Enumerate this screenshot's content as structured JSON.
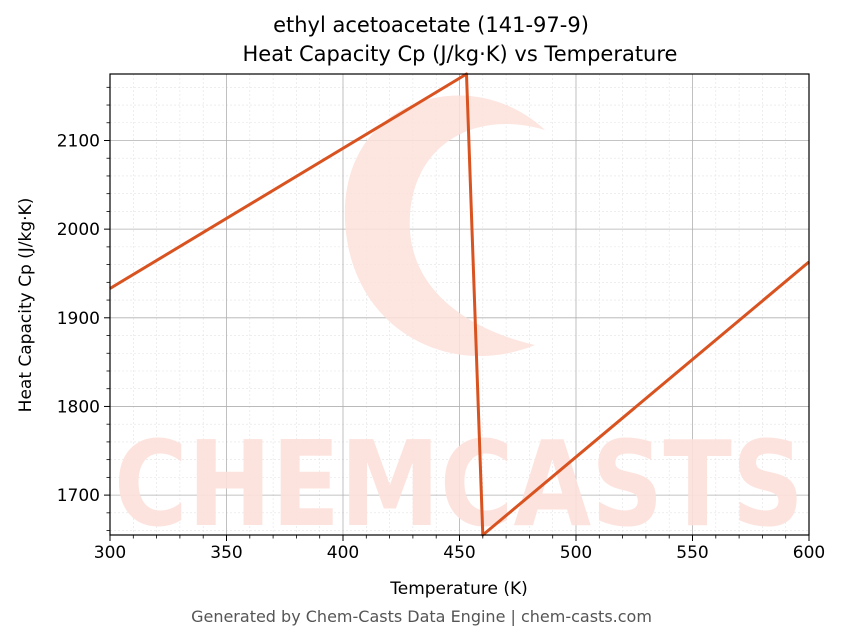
{
  "colors": {
    "line": "#d95321",
    "watermark": "#fde1db",
    "grid_major": "#b0b0b0",
    "grid_minor": "#e3e3e3"
  },
  "watermark": {
    "text": "CHEMCASTS"
  },
  "footer": {
    "text": "Generated by Chem-Casts Data Engine | chem-casts.com"
  },
  "chart_data": {
    "type": "line",
    "title": "ethyl acetoacetate (141-97-9)",
    "subtitle": "Heat Capacity Cp (J/kg·K) vs Temperature",
    "xlabel": "Temperature (K)",
    "ylabel": "Heat Capacity Cp (J/kg·K)",
    "xlim": [
      300,
      600
    ],
    "ylim": [
      1655,
      2175
    ],
    "xticks": [
      300,
      350,
      400,
      450,
      500,
      550,
      600
    ],
    "yticks": [
      1700,
      1800,
      1900,
      2000,
      2100
    ],
    "grid": true,
    "series": [
      {
        "x": [
          300,
          453,
          460,
          600
        ],
        "y": [
          1933,
          2175,
          1655,
          1963
        ]
      }
    ]
  }
}
